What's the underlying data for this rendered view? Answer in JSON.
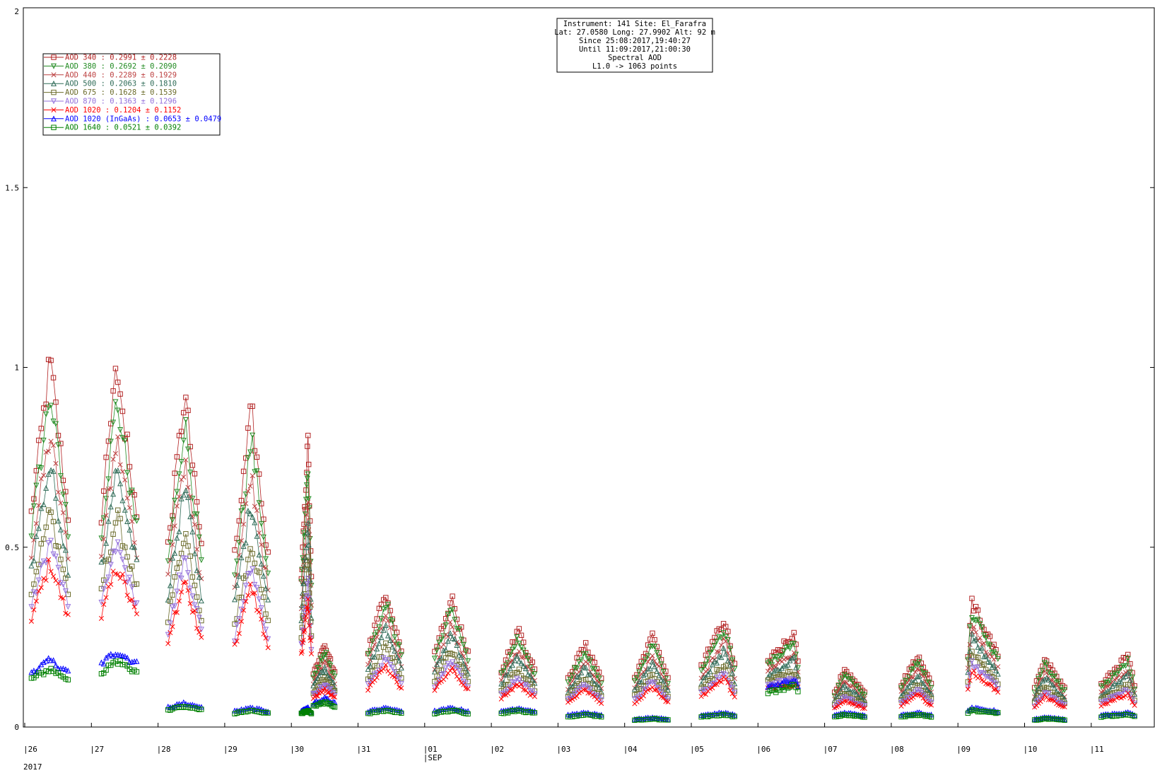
{
  "chart_data": {
    "type": "scatter",
    "title": "",
    "xlabel": "",
    "ylabel": "",
    "ylim": [
      0,
      2
    ],
    "y_ticks": [
      "0",
      "0.5",
      "1",
      "1.5",
      "2"
    ],
    "x_ticks": [
      {
        "label": "|26",
        "sublabel": ""
      },
      {
        "label": "|27",
        "sublabel": ""
      },
      {
        "label": "|28",
        "sublabel": ""
      },
      {
        "label": "|29",
        "sublabel": ""
      },
      {
        "label": "|30",
        "sublabel": ""
      },
      {
        "label": "|31",
        "sublabel": ""
      },
      {
        "label": "|01",
        "sublabel": "|SEP"
      },
      {
        "label": "|02",
        "sublabel": ""
      },
      {
        "label": "|03",
        "sublabel": ""
      },
      {
        "label": "|04",
        "sublabel": ""
      },
      {
        "label": "|05",
        "sublabel": ""
      },
      {
        "label": "|06",
        "sublabel": ""
      },
      {
        "label": "|07",
        "sublabel": ""
      },
      {
        "label": "|08",
        "sublabel": ""
      },
      {
        "label": "|09",
        "sublabel": ""
      },
      {
        "label": "|10",
        "sublabel": ""
      },
      {
        "label": "|11",
        "sublabel": ""
      }
    ],
    "year_label": "2017",
    "info_box": [
      "Instrument: 141 Site: El_Farafra",
      "Lat: 27.0580 Long: 27.9902 Alt: 92 m",
      "Since 25:08:2017,19:40:27",
      "Until 11:09:2017,21:00:30",
      "Spectral AOD",
      "L1.0 -> 1063 points"
    ],
    "legend_position": "top-left",
    "series": [
      {
        "name": "AOD 340",
        "stats": "  : 0.2991 ± 0.2228",
        "color": "#b22222",
        "marker": "square"
      },
      {
        "name": "AOD 380",
        "stats": "  : 0.2692 ± 0.2090",
        "color": "#228b22",
        "marker": "triangle-down"
      },
      {
        "name": "AOD 440",
        "stats": "  : 0.2289 ± 0.1929",
        "color": "#bc4040",
        "marker": "x"
      },
      {
        "name": "AOD 500",
        "stats": "  : 0.2063 ± 0.1810",
        "color": "#2e6b57",
        "marker": "triangle-up"
      },
      {
        "name": "AOD 675",
        "stats": "  : 0.1628 ± 0.1539",
        "color": "#6b6b2a",
        "marker": "square"
      },
      {
        "name": "AOD 870",
        "stats": "  : 0.1363 ± 0.1296",
        "color": "#9370db",
        "marker": "triangle-down"
      },
      {
        "name": "AOD 1020",
        "stats": "  : 0.1204 ± 0.1152",
        "color": "#ff0000",
        "marker": "x"
      },
      {
        "name": "AOD 1020 (InGaAs)",
        "stats": "  : 0.0653 ± 0.0479",
        "color": "#0000ff",
        "marker": "triangle-up"
      },
      {
        "name": "AOD 1640",
        "stats": "  : 0.0521 ± 0.0392",
        "color": "#008000",
        "marker": "square"
      }
    ],
    "daily_profiles": [
      {
        "day": 0,
        "start": 0.1,
        "end": 0.65,
        "peak": 0.38,
        "aod340": 1.02,
        "base": 0.14
      },
      {
        "day": 1,
        "start": 0.15,
        "end": 0.68,
        "peak": 0.38,
        "aod340": 1.0,
        "base": 0.16
      },
      {
        "day": 2,
        "start": 0.15,
        "end": 0.65,
        "peak": 0.4,
        "aod340": 0.93,
        "base": 0.05
      },
      {
        "day": 3,
        "start": 0.15,
        "end": 0.65,
        "peak": 0.4,
        "aod340": 0.88,
        "base": 0.04
      },
      {
        "day": 4,
        "start": 0.15,
        "end": 0.3,
        "peak": 0.25,
        "aod340": 0.78,
        "base": 0.04
      },
      {
        "day": 4,
        "start": 0.33,
        "end": 0.65,
        "peak": 0.5,
        "aod340": 0.23,
        "base": 0.06
      },
      {
        "day": 5,
        "start": 0.15,
        "end": 0.65,
        "peak": 0.42,
        "aod340": 0.38,
        "base": 0.04
      },
      {
        "day": 6,
        "start": 0.15,
        "end": 0.65,
        "peak": 0.4,
        "aod340": 0.36,
        "base": 0.04
      },
      {
        "day": 7,
        "start": 0.15,
        "end": 0.65,
        "peak": 0.4,
        "aod340": 0.27,
        "base": 0.04
      },
      {
        "day": 8,
        "start": 0.15,
        "end": 0.65,
        "peak": 0.4,
        "aod340": 0.23,
        "base": 0.03
      },
      {
        "day": 9,
        "start": 0.15,
        "end": 0.65,
        "peak": 0.42,
        "aod340": 0.25,
        "base": 0.02
      },
      {
        "day": 10,
        "start": 0.15,
        "end": 0.65,
        "peak": 0.5,
        "aod340": 0.3,
        "base": 0.03
      },
      {
        "day": 11,
        "start": 0.15,
        "end": 0.6,
        "peak": 0.55,
        "aod340": 0.26,
        "base": 0.1
      },
      {
        "day": 12,
        "start": 0.15,
        "end": 0.6,
        "peak": 0.3,
        "aod340": 0.16,
        "base": 0.03
      },
      {
        "day": 13,
        "start": 0.15,
        "end": 0.6,
        "peak": 0.4,
        "aod340": 0.2,
        "base": 0.03
      },
      {
        "day": 14,
        "start": 0.15,
        "end": 0.6,
        "peak": 0.2,
        "aod340": 0.35,
        "base": 0.04
      },
      {
        "day": 15,
        "start": 0.15,
        "end": 0.6,
        "peak": 0.3,
        "aod340": 0.19,
        "base": 0.02
      },
      {
        "day": 16,
        "start": 0.15,
        "end": 0.65,
        "peak": 0.55,
        "aod340": 0.2,
        "base": 0.03
      }
    ]
  }
}
